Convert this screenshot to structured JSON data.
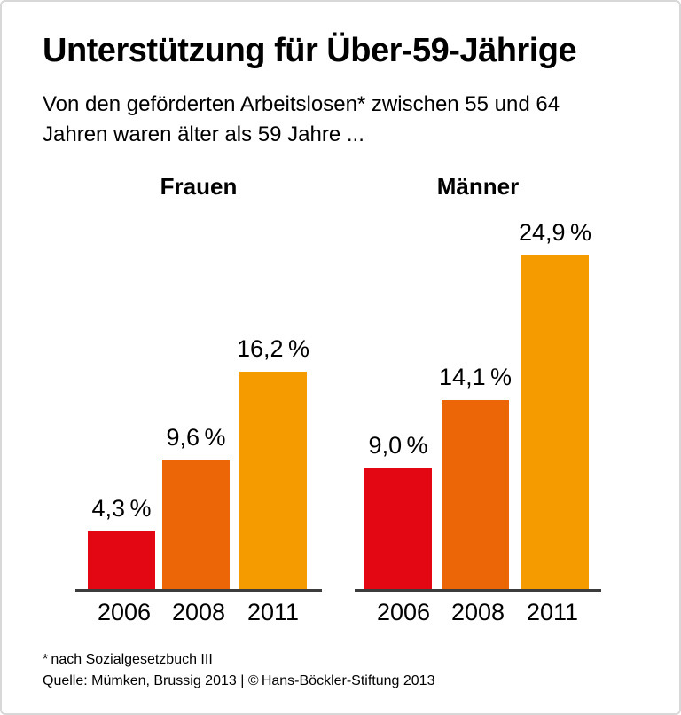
{
  "header": {
    "title": "Unterstützung für Über-59-Jährige",
    "subtitle_lines": [
      "Von den geförderten Arbeitslosen* zwischen 55 und 64",
      "Jahren waren älter als 59 Jahre ..."
    ]
  },
  "chart_data": {
    "type": "bar",
    "title": "Unterstützung für Über-59-Jährige",
    "subtitle": "Von den geförderten Arbeitslosen* zwischen 55 und 64 Jahren waren älter als 59 Jahre ...",
    "unit": "%",
    "categories": [
      "2006",
      "2008",
      "2011"
    ],
    "bar_colors": [
      "#e30613",
      "#ec6608",
      "#f59b00"
    ],
    "ylim": [
      0,
      28
    ],
    "grid": false,
    "legend": "none",
    "value_label_position": "above-bar",
    "groups": [
      {
        "name": "Frauen",
        "values": [
          4.3,
          9.6,
          16.2
        ],
        "value_labels": [
          "4,3 %",
          "9,6 %",
          "16,2 %"
        ]
      },
      {
        "name": "Männer",
        "values": [
          9.0,
          14.1,
          24.9
        ],
        "value_labels": [
          "9,0 %",
          "14,1 %",
          "24,9 %"
        ]
      }
    ]
  },
  "footer": {
    "footnote": "* nach Sozialgesetzbuch III",
    "source": "Quelle: Mümken, Brussig 2013 | © Hans-Böckler-Stiftung 2013"
  },
  "colors": {
    "bar_2006": "#e30613",
    "bar_2008": "#ec6608",
    "bar_2011": "#f59b00",
    "axis_line": "#3c3c3c",
    "text": "#000000",
    "frame_border": "#d8d8d8",
    "background": "#ffffff"
  }
}
